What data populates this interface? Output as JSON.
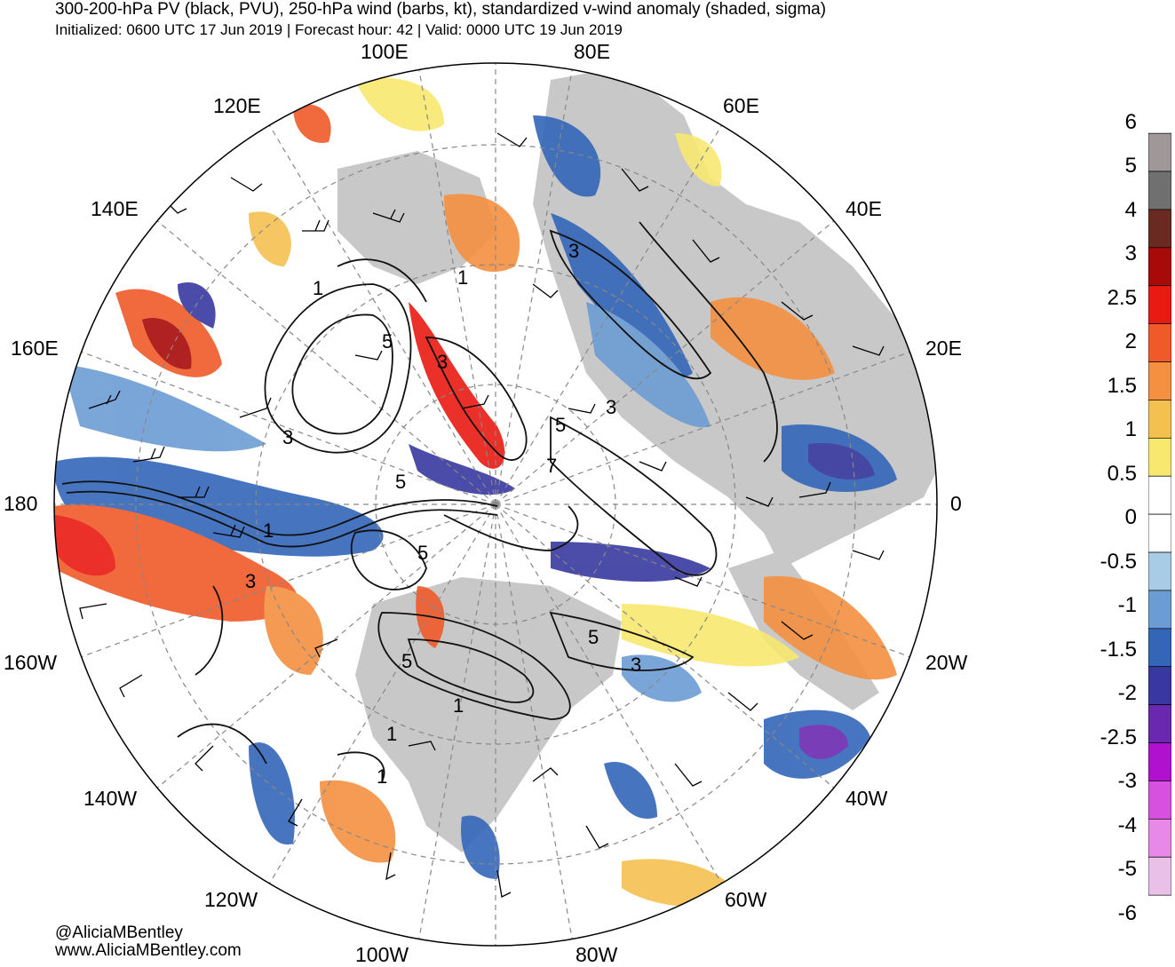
{
  "header": {
    "title": "300-200-hPa PV (black, PVU), 250-hPa wind (barbs, kt), standardized v-wind anomaly (shaded, sigma)",
    "subtitle": "Initialized: 0600 UTC 17 Jun 2019 | Forecast hour: 42 | Valid: 0000 UTC 19 Jun 2019"
  },
  "map": {
    "projection": "north-polar-stereographic",
    "longitude_labels": [
      "100E",
      "80E",
      "120E",
      "60E",
      "140E",
      "40E",
      "160E",
      "20E",
      "180",
      "0",
      "160W",
      "20W",
      "140W",
      "40W",
      "120W",
      "60W",
      "100W",
      "80W"
    ],
    "pv_contour_labels": [
      "1",
      "3",
      "5",
      "3",
      "5",
      "3",
      "7",
      "5",
      "1",
      "3",
      "1",
      "5",
      "3",
      "5",
      "1",
      "1",
      "5",
      "3",
      "1"
    ],
    "land_color": "#c8c8c8",
    "contour_color": "#000000"
  },
  "colorbar": {
    "tick_labels": [
      "6",
      "5",
      "4",
      "3",
      "2.5",
      "2",
      "1.5",
      "1",
      "0.5",
      "0",
      "-0.5",
      "-1",
      "-1.5",
      "-2",
      "-2.5",
      "-3",
      "-4",
      "-5",
      "-6"
    ],
    "colors": [
      "#a09898",
      "#707070",
      "#6a2a22",
      "#a80a0a",
      "#e81a12",
      "#f05a2a",
      "#f49040",
      "#f4c050",
      "#f8e870",
      "#ffffff",
      "#ffffff",
      "#a8cce6",
      "#6c9cd4",
      "#3466b8",
      "#3838a0",
      "#6a28b0",
      "#b010d0",
      "#d850e0",
      "#e888e8",
      "#e8c0e8"
    ]
  },
  "credits": {
    "handle": "@AliciaMBentley",
    "website": "www.AliciaMBentley.com"
  }
}
